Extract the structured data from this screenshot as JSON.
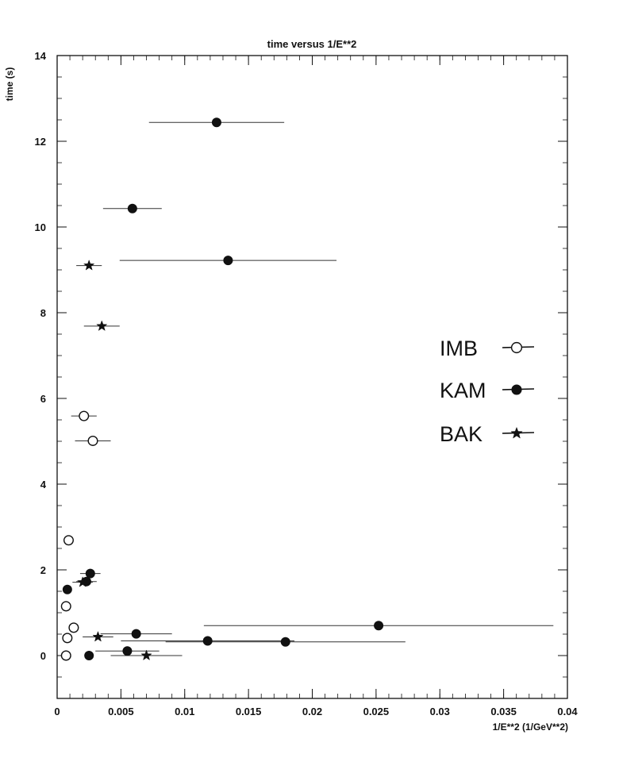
{
  "chart_data": {
    "type": "scatter",
    "title": "time versus 1/E**2",
    "xlabel": "1/E**2 (1/GeV**2)",
    "ylabel": "time (s)",
    "xlim": [
      0,
      0.04
    ],
    "ylim": [
      -1,
      14
    ],
    "x_ticks": [
      0,
      0.005,
      0.01,
      0.015,
      0.02,
      0.025,
      0.03,
      0.035,
      0.04
    ],
    "x_tick_labels": [
      "0",
      "0.005",
      "0.01",
      "0.015",
      "0.02",
      "0.025",
      "0.03",
      "0.035",
      "0.04"
    ],
    "y_ticks": [
      0,
      2,
      4,
      6,
      8,
      10,
      12,
      14
    ],
    "y_tick_labels": [
      "0",
      "2",
      "4",
      "6",
      "8",
      "10",
      "12",
      "14"
    ],
    "grid": false,
    "legend_position": "right",
    "series": [
      {
        "name": "IMB",
        "marker": "open-circle",
        "points": [
          {
            "x": 0.0007,
            "y": 0.0,
            "xerr": [
              0,
              0
            ]
          },
          {
            "x": 0.0008,
            "y": 0.41,
            "xerr": [
              0,
              0
            ]
          },
          {
            "x": 0.0013,
            "y": 0.65,
            "xerr": [
              0.0004,
              0.0004
            ]
          },
          {
            "x": 0.0007,
            "y": 1.15,
            "xerr": [
              0,
              0
            ]
          },
          {
            "x": 0.0009,
            "y": 2.69,
            "xerr": [
              0,
              0
            ]
          },
          {
            "x": 0.0028,
            "y": 5.01,
            "xerr": [
              0.0014,
              0.0014
            ]
          },
          {
            "x": 0.0021,
            "y": 5.59,
            "xerr": [
              0.001,
              0.001
            ]
          }
        ]
      },
      {
        "name": "KAM",
        "marker": "filled-circle",
        "points": [
          {
            "x": 0.0025,
            "y": 0.0,
            "xerr": [
              0,
              0
            ]
          },
          {
            "x": 0.0055,
            "y": 0.107,
            "xerr": [
              0.0025,
              0.0025
            ]
          },
          {
            "x": 0.0062,
            "y": 0.507,
            "xerr": [
              0.0028,
              0.0028
            ]
          },
          {
            "x": 0.0118,
            "y": 0.342,
            "xerr": [
              0.0068,
              0.0068
            ]
          },
          {
            "x": 0.0179,
            "y": 0.32,
            "xerr": [
              0.0094,
              0.0094
            ]
          },
          {
            "x": 0.0252,
            "y": 0.7,
            "xerr": [
              0.0137,
              0.0137
            ]
          },
          {
            "x": 0.0008,
            "y": 1.541,
            "xerr": [
              0,
              0
            ]
          },
          {
            "x": 0.0023,
            "y": 1.728,
            "xerr": [
              0.0008,
              0.0008
            ]
          },
          {
            "x": 0.0026,
            "y": 1.915,
            "xerr": [
              0.0008,
              0.0008
            ]
          },
          {
            "x": 0.0059,
            "y": 10.43,
            "xerr": [
              0.0023,
              0.0023
            ]
          },
          {
            "x": 0.0125,
            "y": 12.44,
            "xerr": [
              0.0053,
              0.0053
            ]
          },
          {
            "x": 0.0134,
            "y": 9.22,
            "xerr": [
              0.0085,
              0.0085
            ]
          }
        ]
      },
      {
        "name": "BAK",
        "marker": "star",
        "points": [
          {
            "x": 0.007,
            "y": 0.0,
            "xerr": [
              0.0028,
              0.0028
            ]
          },
          {
            "x": 0.0032,
            "y": 0.435,
            "xerr": [
              0.0012,
              0.0012
            ]
          },
          {
            "x": 0.002,
            "y": 1.71,
            "xerr": [
              0.0008,
              0.0008
            ]
          },
          {
            "x": 0.0035,
            "y": 7.687,
            "xerr": [
              0.0014,
              0.0014
            ]
          },
          {
            "x": 0.0025,
            "y": 9.1,
            "xerr": [
              0.001,
              0.001
            ]
          }
        ]
      }
    ]
  }
}
